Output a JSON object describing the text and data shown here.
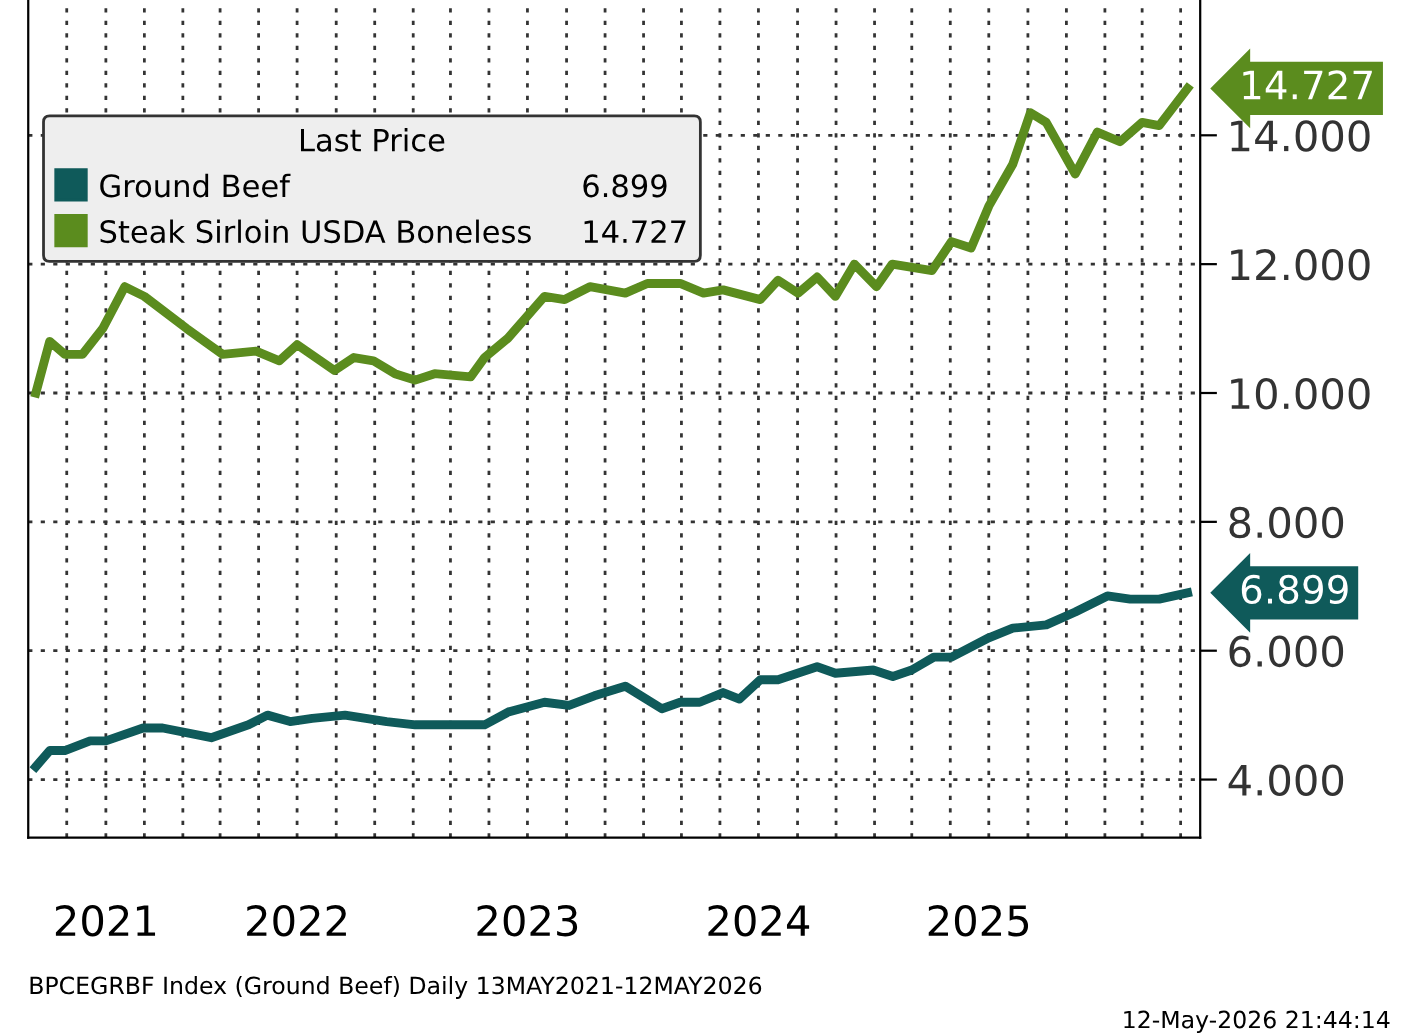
{
  "chart_data": {
    "type": "line",
    "legend_title": "Last Price",
    "legend": "top left",
    "grid": true,
    "line_style": "solid",
    "xlim": [
      "2021-05-01",
      "2026-06-01"
    ],
    "ylim": [
      3.1,
      16.1
    ],
    "yticks": [
      {
        "value": 4,
        "label": "4.000"
      },
      {
        "value": 6,
        "label": "6.000"
      },
      {
        "value": 8,
        "label": "8.000"
      },
      {
        "value": 10,
        "label": "10.000"
      },
      {
        "value": 12,
        "label": "12.000"
      },
      {
        "value": 14,
        "label": "14.000"
      }
    ],
    "xticks": [
      {
        "value": "2021-09-01",
        "label": "2021"
      },
      {
        "value": "2022-07-01",
        "label": "2022"
      },
      {
        "value": "2023-07-01",
        "label": "2023"
      },
      {
        "value": "2024-07-01",
        "label": "2024"
      },
      {
        "value": "2025-06-15",
        "label": "2025"
      },
      {
        "value": "2021-07-01",
        "label": null
      },
      {
        "value": "2021-09-01",
        "label": null
      },
      {
        "value": "2021-11-01",
        "label": null
      },
      {
        "value": "2022-01-01",
        "label": null
      },
      {
        "value": "2022-03-01",
        "label": null
      },
      {
        "value": "2022-05-01",
        "label": null
      },
      {
        "value": "2022-07-01",
        "label": null
      },
      {
        "value": "2022-09-01",
        "label": null
      },
      {
        "value": "2022-11-01",
        "label": null
      },
      {
        "value": "2023-01-01",
        "label": null
      },
      {
        "value": "2023-03-01",
        "label": null
      },
      {
        "value": "2023-05-01",
        "label": null
      },
      {
        "value": "2023-07-01",
        "label": null
      },
      {
        "value": "2023-09-01",
        "label": null
      },
      {
        "value": "2023-11-01",
        "label": null
      },
      {
        "value": "2024-01-01",
        "label": null
      },
      {
        "value": "2024-03-01",
        "label": null
      },
      {
        "value": "2024-05-01",
        "label": null
      },
      {
        "value": "2024-07-01",
        "label": null
      },
      {
        "value": "2024-09-01",
        "label": null
      },
      {
        "value": "2024-11-01",
        "label": null
      },
      {
        "value": "2025-01-01",
        "label": null
      },
      {
        "value": "2025-03-01",
        "label": null
      },
      {
        "value": "2025-05-01",
        "label": null
      },
      {
        "value": "2025-07-01",
        "label": null
      },
      {
        "value": "2025-09-01",
        "label": null
      },
      {
        "value": "2025-11-01",
        "label": null
      },
      {
        "value": "2026-01-01",
        "label": null
      },
      {
        "value": "2026-03-01",
        "label": null
      },
      {
        "value": "2026-05-01",
        "label": null
      }
    ],
    "series": [
      {
        "name": "Ground Beef",
        "color": "#0f5a5a",
        "x": [
          "2021-05-13",
          "2021-06-04",
          "2021-06-28",
          "2021-08-07",
          "2021-09-01",
          "2021-10-30",
          "2021-11-30",
          "2022-02-15",
          "2022-04-15",
          "2022-05-15",
          "2022-06-20",
          "2022-07-25",
          "2022-09-15",
          "2022-11-20",
          "2023-01-04",
          "2023-04-24",
          "2023-06-01",
          "2023-07-28",
          "2023-09-05",
          "2023-10-15",
          "2023-12-03",
          "2024-01-30",
          "2024-02-28",
          "2024-03-30",
          "2024-05-06",
          "2024-06-01",
          "2024-07-04",
          "2024-08-01",
          "2024-10-02",
          "2024-10-31",
          "2024-12-30",
          "2025-01-30",
          "2025-03-01",
          "2025-04-05",
          "2025-05-03",
          "2025-07-01",
          "2025-08-08",
          "2025-09-30",
          "2025-11-15",
          "2026-01-05",
          "2026-02-10",
          "2026-03-28",
          "2026-05-12"
        ],
        "values": [
          4.2,
          4.45,
          4.45,
          4.6,
          4.6,
          4.8,
          4.8,
          4.65,
          4.85,
          5.0,
          4.9,
          4.95,
          5.0,
          4.9,
          4.85,
          4.85,
          5.05,
          5.2,
          5.15,
          5.3,
          5.45,
          5.1,
          5.2,
          5.2,
          5.35,
          5.25,
          5.55,
          5.55,
          5.75,
          5.65,
          5.7,
          5.6,
          5.7,
          5.9,
          5.9,
          6.2,
          6.35,
          6.4,
          6.6,
          6.85,
          6.8,
          6.8,
          6.899
        ],
        "value_labels": [
          null,
          null,
          null,
          null,
          null,
          null,
          null,
          null,
          null,
          null,
          null,
          null,
          null,
          null,
          null,
          null,
          null,
          null,
          null,
          null,
          null,
          null,
          null,
          null,
          null,
          null,
          null,
          null,
          null,
          null,
          null,
          null,
          null,
          null,
          null,
          null,
          null,
          null,
          null,
          null,
          null,
          null,
          "6.899"
        ]
      },
      {
        "name": "Steak Sirloin USDA Boneless",
        "color": "#5b8c1e",
        "x": [
          "2021-05-13",
          "2021-06-04",
          "2021-06-28",
          "2021-07-26",
          "2021-08-27",
          "2021-10-01",
          "2021-11-01",
          "2022-01-07",
          "2022-03-05",
          "2022-04-27",
          "2022-06-03",
          "2022-07-01",
          "2022-08-29",
          "2022-09-29",
          "2022-10-30",
          "2022-12-03",
          "2023-01-04",
          "2023-02-04",
          "2023-04-02",
          "2023-04-24",
          "2023-05-31",
          "2023-07-28",
          "2023-08-29",
          "2023-10-08",
          "2023-12-03",
          "2024-01-07",
          "2024-02-28",
          "2024-04-05",
          "2024-05-06",
          "2024-07-04",
          "2024-08-01",
          "2024-09-02",
          "2024-10-02",
          "2024-10-31",
          "2024-11-30",
          "2025-01-04",
          "2025-01-29",
          "2025-04-02",
          "2025-05-03",
          "2025-06-03",
          "2025-07-01",
          "2025-08-08",
          "2025-09-05",
          "2025-09-30",
          "2025-11-15",
          "2025-12-20",
          "2026-01-25",
          "2026-03-01",
          "2026-03-28",
          "2026-05-12"
        ],
        "values": [
          10.0,
          10.8,
          10.6,
          10.6,
          11.0,
          11.65,
          11.5,
          11.0,
          10.6,
          10.65,
          10.5,
          10.75,
          10.35,
          10.55,
          10.5,
          10.3,
          10.2,
          10.3,
          10.25,
          10.55,
          10.85,
          11.5,
          11.45,
          11.65,
          11.55,
          11.7,
          11.7,
          11.55,
          11.6,
          11.45,
          11.75,
          11.55,
          11.8,
          11.5,
          12.0,
          11.65,
          12.0,
          11.9,
          12.35,
          12.25,
          12.9,
          13.55,
          14.35,
          14.2,
          13.4,
          14.05,
          13.9,
          14.2,
          14.15,
          14.727
        ],
        "value_labels": [
          null,
          null,
          null,
          null,
          null,
          null,
          null,
          null,
          null,
          null,
          null,
          null,
          null,
          null,
          null,
          null,
          null,
          null,
          null,
          null,
          null,
          null,
          null,
          null,
          null,
          null,
          null,
          null,
          null,
          null,
          null,
          null,
          null,
          null,
          null,
          null,
          null,
          null,
          null,
          null,
          null,
          null,
          null,
          null,
          null,
          null,
          null,
          null,
          null,
          "14.727"
        ]
      }
    ],
    "annotations": [
      "BPCEGRBF Index (Ground Beef) Daily 13MAY2021-12MAY2026",
      "12-May-2026 21:44:14"
    ]
  }
}
